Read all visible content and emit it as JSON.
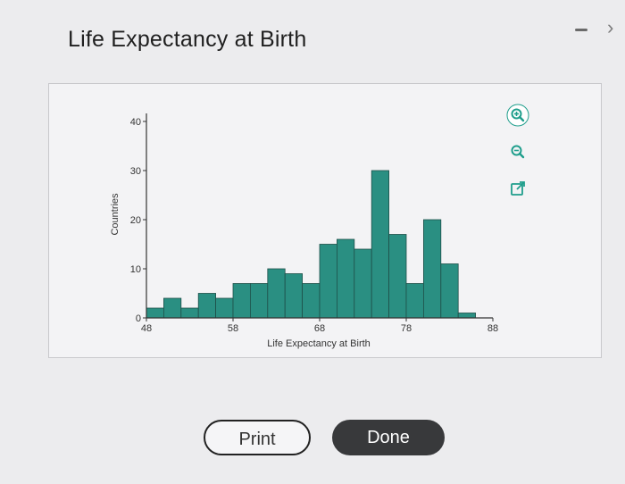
{
  "dialog": {
    "title": "Life Expectancy at Birth",
    "close_glyph": "›"
  },
  "toolbar": {
    "icons": [
      "zoom-in-icon",
      "zoom-out-icon",
      "open-external-icon"
    ],
    "accent": "#1f9e8c"
  },
  "buttons": {
    "print_label": "Print",
    "done_label": "Done"
  },
  "chart_data": {
    "type": "bar",
    "title": "",
    "xlabel": "Life Expectancy at Birth",
    "ylabel": "Countries",
    "x_ticks": [
      48,
      58,
      68,
      78,
      88
    ],
    "y_ticks": [
      0,
      10,
      20,
      30,
      40
    ],
    "xlim": [
      48,
      88
    ],
    "ylim": [
      0,
      40
    ],
    "bin_width": 2,
    "bin_starts": [
      48,
      50,
      52,
      54,
      56,
      58,
      60,
      62,
      64,
      66,
      68,
      70,
      72,
      74,
      76,
      78,
      80,
      82,
      84
    ],
    "values": [
      2,
      4,
      2,
      5,
      4,
      7,
      7,
      10,
      9,
      7,
      15,
      16,
      14,
      30,
      17,
      7,
      20,
      11,
      1
    ],
    "bar_color": "#2a8f82",
    "bar_edge": "#1e4f49",
    "grid": false
  }
}
